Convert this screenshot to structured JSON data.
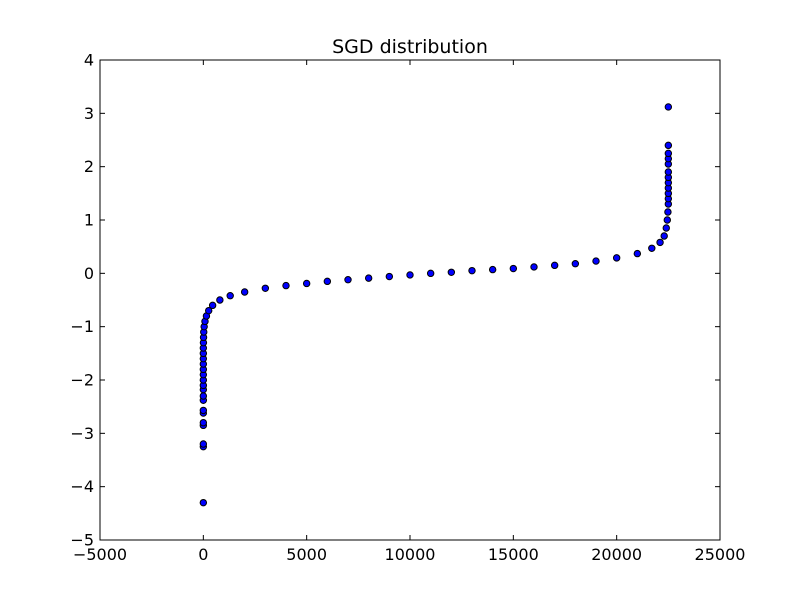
{
  "chart_data": {
    "type": "scatter",
    "title": "SGD distribution",
    "xlabel": "",
    "ylabel": "",
    "xlim": [
      -5000,
      25000
    ],
    "ylim": [
      -5,
      4
    ],
    "xticks": [
      -5000,
      0,
      5000,
      10000,
      15000,
      20000,
      25000
    ],
    "yticks": [
      -5,
      -4,
      -3,
      -2,
      -1,
      0,
      1,
      2,
      3,
      4
    ],
    "grid": false,
    "legend": "none",
    "marker_color": "#0000ff",
    "marker_edge_color": "#000000",
    "series": [
      {
        "points": [
          [
            0,
            -4.3
          ],
          [
            0,
            -3.25
          ],
          [
            0,
            -3.2
          ],
          [
            0,
            -2.85
          ],
          [
            0,
            -2.8
          ],
          [
            0,
            -2.62
          ],
          [
            0,
            -2.57
          ],
          [
            0,
            -2.38
          ],
          [
            0,
            -2.3
          ],
          [
            0,
            -2.18
          ],
          [
            0,
            -2.1
          ],
          [
            0,
            -2.0
          ],
          [
            0,
            -1.9
          ],
          [
            0,
            -1.8
          ],
          [
            0,
            -1.7
          ],
          [
            0,
            -1.6
          ],
          [
            0,
            -1.5
          ],
          [
            0,
            -1.4
          ],
          [
            5,
            -1.3
          ],
          [
            10,
            -1.2
          ],
          [
            20,
            -1.1
          ],
          [
            40,
            -1.0
          ],
          [
            80,
            -0.9
          ],
          [
            150,
            -0.8
          ],
          [
            260,
            -0.7
          ],
          [
            450,
            -0.6
          ],
          [
            800,
            -0.5
          ],
          [
            1300,
            -0.42
          ],
          [
            2000,
            -0.35
          ],
          [
            3000,
            -0.28
          ],
          [
            4000,
            -0.23
          ],
          [
            5000,
            -0.19
          ],
          [
            6000,
            -0.15
          ],
          [
            7000,
            -0.12
          ],
          [
            8000,
            -0.09
          ],
          [
            9000,
            -0.06
          ],
          [
            10000,
            -0.03
          ],
          [
            11000,
            0.0
          ],
          [
            12000,
            0.02
          ],
          [
            13000,
            0.05
          ],
          [
            14000,
            0.07
          ],
          [
            15000,
            0.09
          ],
          [
            16000,
            0.12
          ],
          [
            17000,
            0.15
          ],
          [
            18000,
            0.18
          ],
          [
            19000,
            0.23
          ],
          [
            20000,
            0.29
          ],
          [
            21000,
            0.37
          ],
          [
            21700,
            0.47
          ],
          [
            22100,
            0.58
          ],
          [
            22300,
            0.7
          ],
          [
            22400,
            0.85
          ],
          [
            22450,
            1.0
          ],
          [
            22480,
            1.15
          ],
          [
            22500,
            1.3
          ],
          [
            22500,
            1.4
          ],
          [
            22500,
            1.5
          ],
          [
            22500,
            1.6
          ],
          [
            22500,
            1.7
          ],
          [
            22500,
            1.8
          ],
          [
            22500,
            1.9
          ],
          [
            22500,
            2.05
          ],
          [
            22500,
            2.15
          ],
          [
            22500,
            2.25
          ],
          [
            22500,
            2.4
          ],
          [
            22500,
            3.12
          ]
        ]
      }
    ]
  }
}
